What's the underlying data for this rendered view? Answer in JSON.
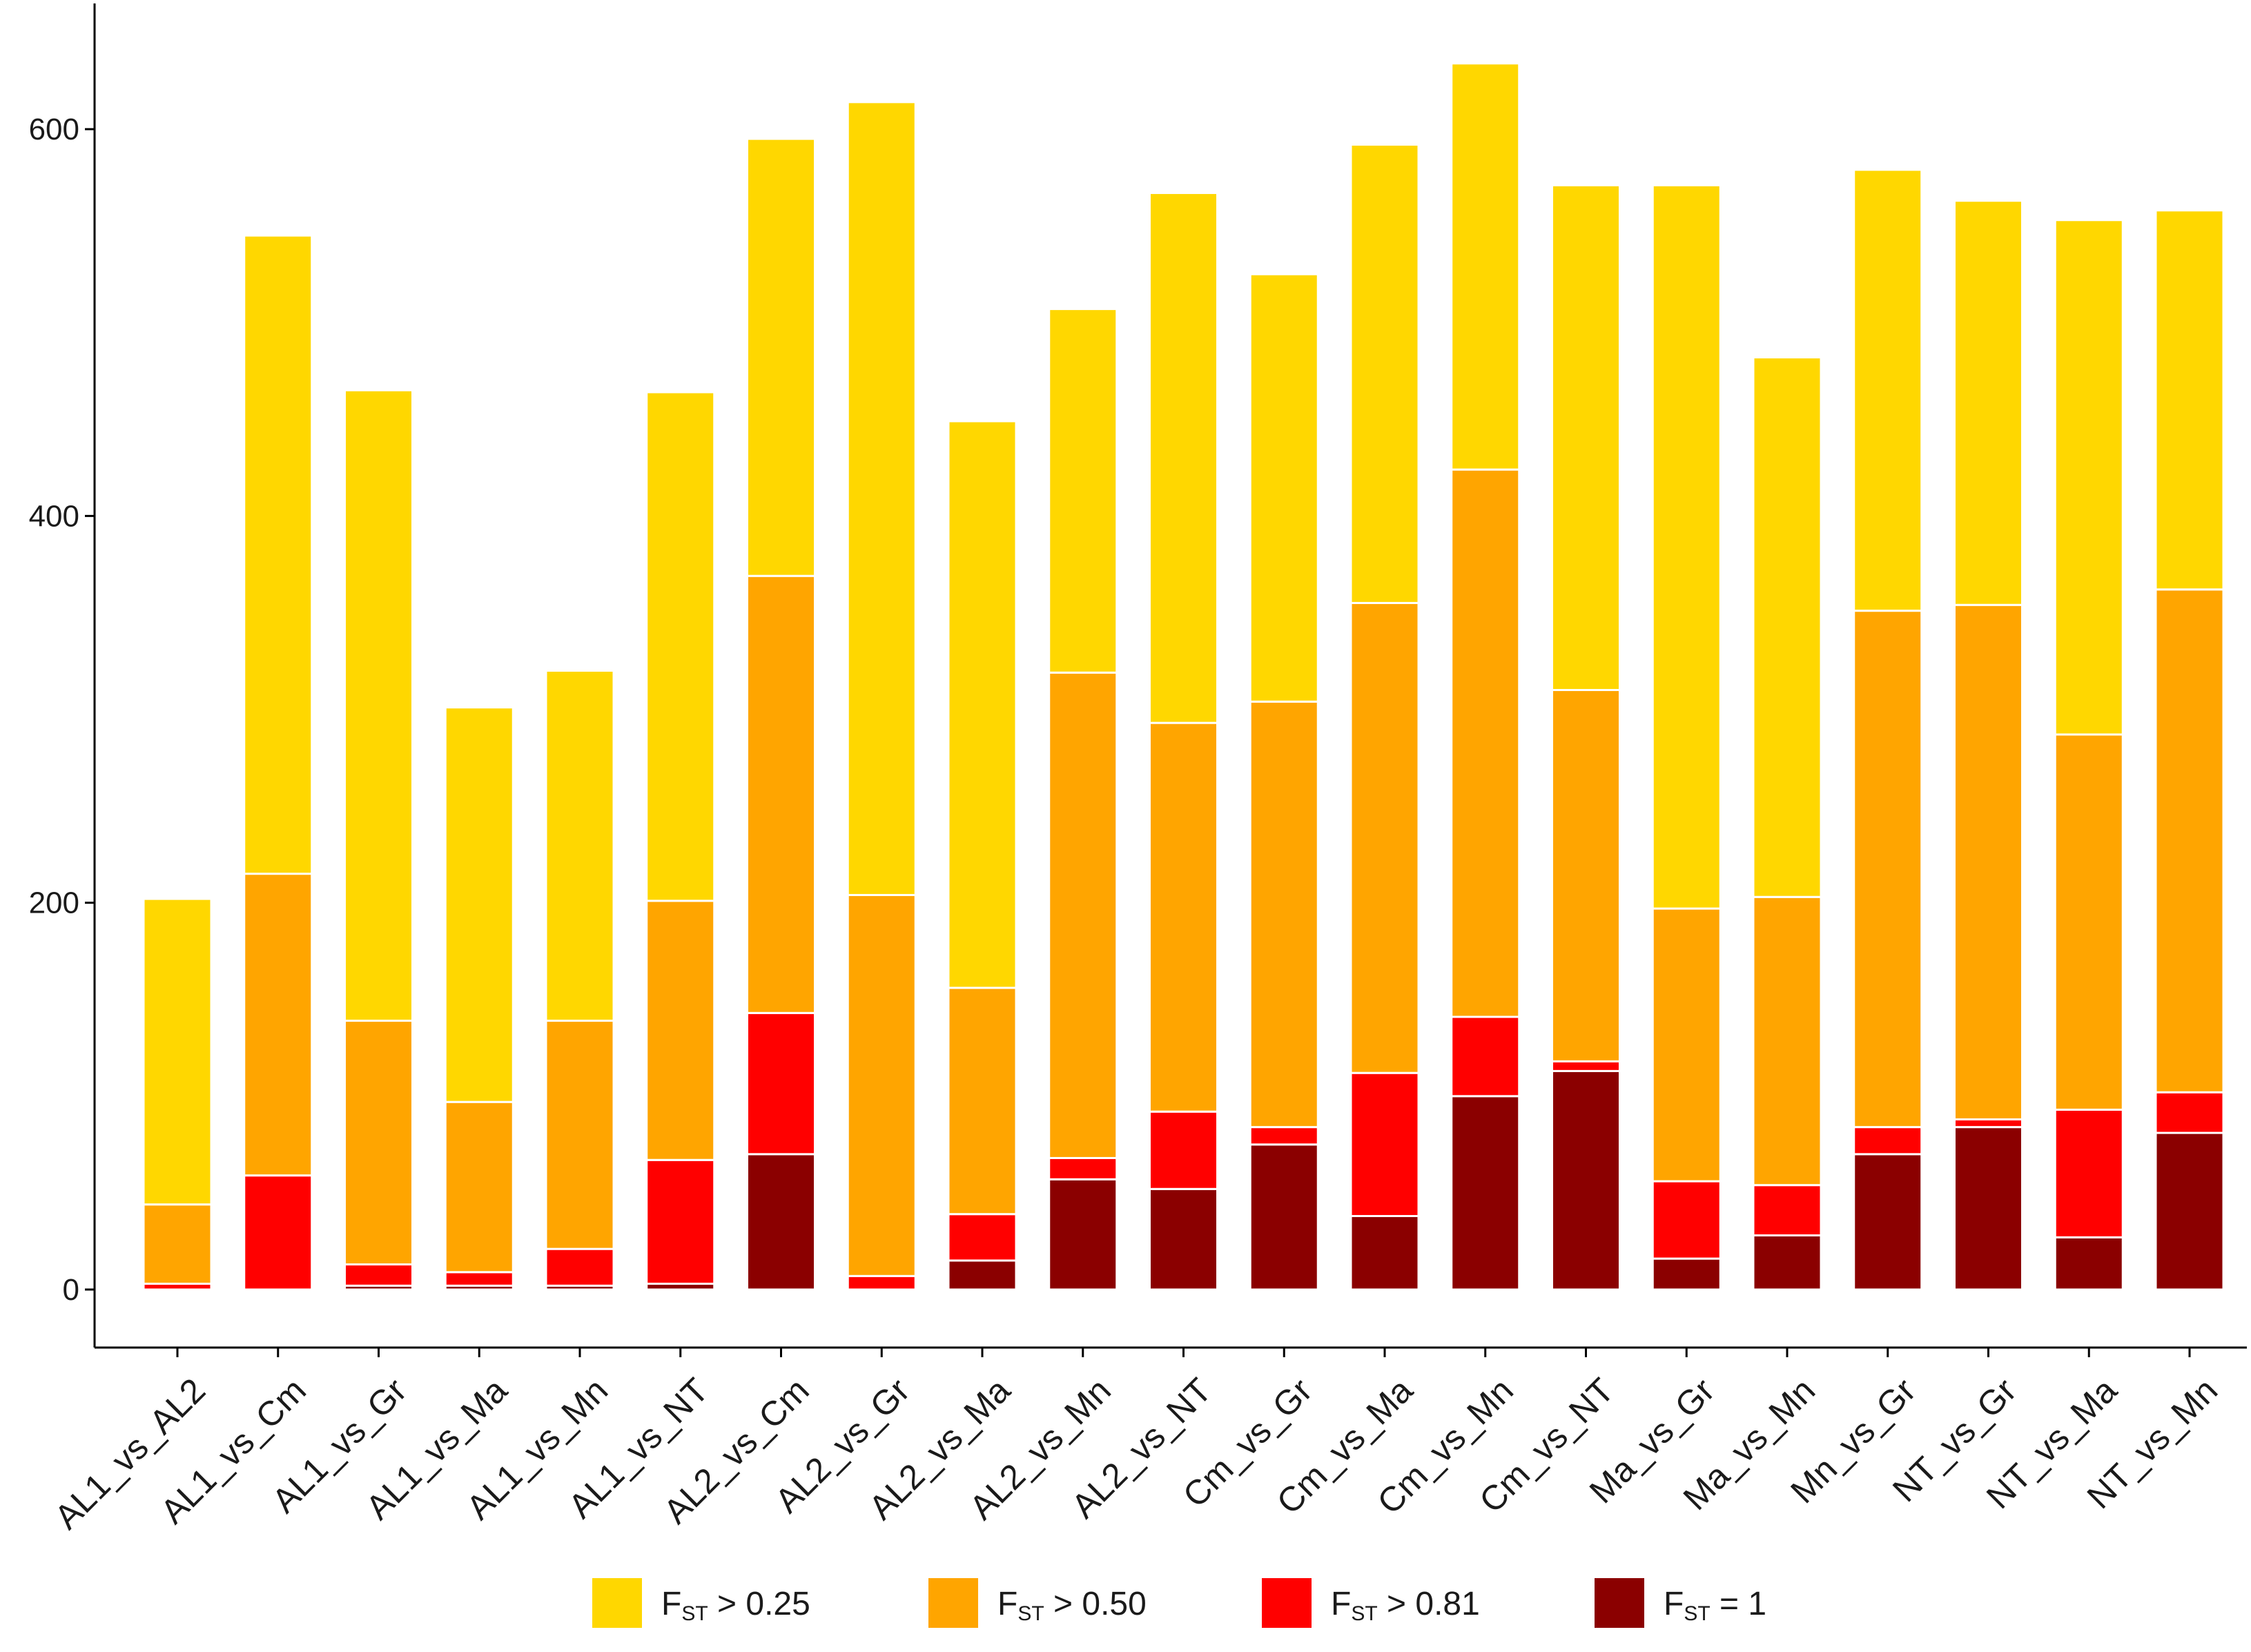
{
  "chart_data": {
    "type": "bar",
    "stacked": true,
    "title": "",
    "xlabel": "",
    "ylabel": "",
    "ylim": [
      -30,
      665
    ],
    "yticks": [
      0,
      200,
      400,
      600
    ],
    "categories": [
      "AL1_vs_AL2",
      "AL1_vs_Cm",
      "AL1_vs_Gr",
      "AL1_vs_Ma",
      "AL1_vs_Mn",
      "AL1_vs_NT",
      "AL2_vs_Cm",
      "AL2_vs_Gr",
      "AL2_vs_Ma",
      "AL2_vs_Mn",
      "AL2_vs_NT",
      "Cm_vs_Gr",
      "Cm_vs_Ma",
      "Cm_vs_Mn",
      "Cm_vs_NT",
      "Ma_vs_Gr",
      "Ma_vs_Mn",
      "Mn_vs_Gr",
      "NT_vs_Gr",
      "NT_vs_Ma",
      "NT_vs_Mn"
    ],
    "series": [
      {
        "name": "FST = 1",
        "legend_main": "F",
        "legend_sub": "ST",
        "legend_rest": " = 1",
        "color": "#8B0000",
        "values": [
          0,
          0,
          2,
          2,
          2,
          3,
          70,
          0,
          15,
          57,
          52,
          75,
          38,
          100,
          113,
          16,
          28,
          70,
          84,
          27,
          81
        ]
      },
      {
        "name": "FST > 0.81",
        "legend_main": "F",
        "legend_sub": "ST",
        "legend_rest": " > 0.81",
        "color": "#FF0000",
        "values": [
          3,
          59,
          11,
          7,
          19,
          64,
          73,
          7,
          24,
          11,
          40,
          9,
          74,
          41,
          5,
          40,
          26,
          14,
          4,
          66,
          21
        ]
      },
      {
        "name": "FST > 0.50",
        "legend_main": "F",
        "legend_sub": "ST",
        "legend_rest": " > 0.50",
        "color": "#FFA500",
        "values": [
          41,
          156,
          126,
          88,
          118,
          134,
          226,
          197,
          117,
          251,
          201,
          220,
          243,
          283,
          192,
          141,
          149,
          267,
          266,
          194,
          260
        ]
      },
      {
        "name": "FST > 0.25",
        "legend_main": "F",
        "legend_sub": "ST",
        "legend_rest": " > 0.25",
        "color": "#FFD700",
        "values": [
          158,
          330,
          326,
          204,
          181,
          263,
          226,
          410,
          293,
          188,
          274,
          221,
          237,
          210,
          261,
          374,
          279,
          228,
          209,
          266,
          196
        ]
      }
    ],
    "legend_position": "bottom",
    "legend_order": [
      "FST > 0.25",
      "FST > 0.50",
      "FST > 0.81",
      "FST = 1"
    ]
  }
}
